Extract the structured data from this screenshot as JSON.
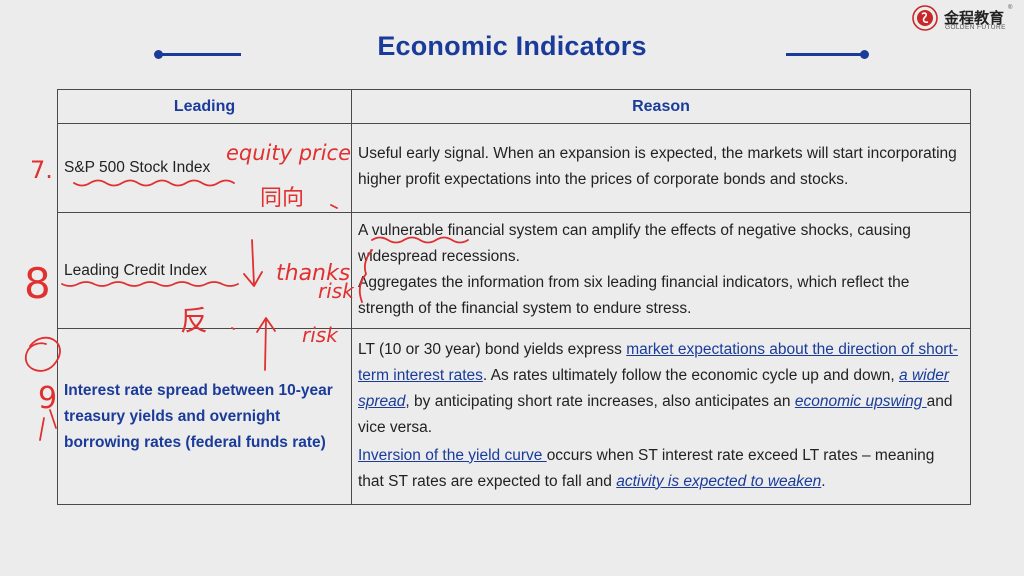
{
  "brand": {
    "name_cn": "金程教育",
    "name_en": "GOLDEN FUTURE",
    "registered_mark": "®"
  },
  "slide": {
    "title": "Economic Indicators",
    "accent_color": "#1a3b9a"
  },
  "table": {
    "headers": {
      "leading": "Leading",
      "reason": "Reason"
    },
    "rows": [
      {
        "leading": "S&P 500 Stock Index",
        "reason_text": "Useful early signal. When an expansion is expected, the markets will start incorporating higher profit expectations into the prices of corporate bonds and stocks."
      },
      {
        "leading": "Leading Credit Index",
        "reason_p1": "A vulnerable financial system can amplify the effects of negative shocks, causing widespread recessions.",
        "reason_p2": "Aggregates the information from six leading financial indicators, which reflect the strength of the financial  system to endure stress."
      },
      {
        "leading": "Interest rate spread  between 10-year treasury yields and overnight borrowing  rates (federal funds rate)",
        "r3_a": "LT (10 or 30 year) bond yields express ",
        "r3_b": "market expectations about the direction of short-term interest rates",
        "r3_c": ". As rates ultimately follow the economic cycle up and down, ",
        "r3_d": "a wider spread",
        "r3_e": ", by anticipating short rate increases, also anticipates an ",
        "r3_f": "economic upswing ",
        "r3_g": "and vice versa.",
        "r3_h": "Inversion of the yield curve ",
        "r3_i": "occurs when ST interest  rate exceed LT rates – meaning that ST rates are expected to fall and ",
        "r3_j": "activity is expected to weaken",
        "r3_k": "."
      }
    ]
  },
  "annotations": {
    "color": "#e03030",
    "num7": "7.",
    "num8": "8",
    "num9": "9",
    "equity_price": "equity price",
    "tongxiang": "同向",
    "fan": "反",
    "thanks": "thanks",
    "risk1": "risk",
    "risk2": "risk"
  }
}
